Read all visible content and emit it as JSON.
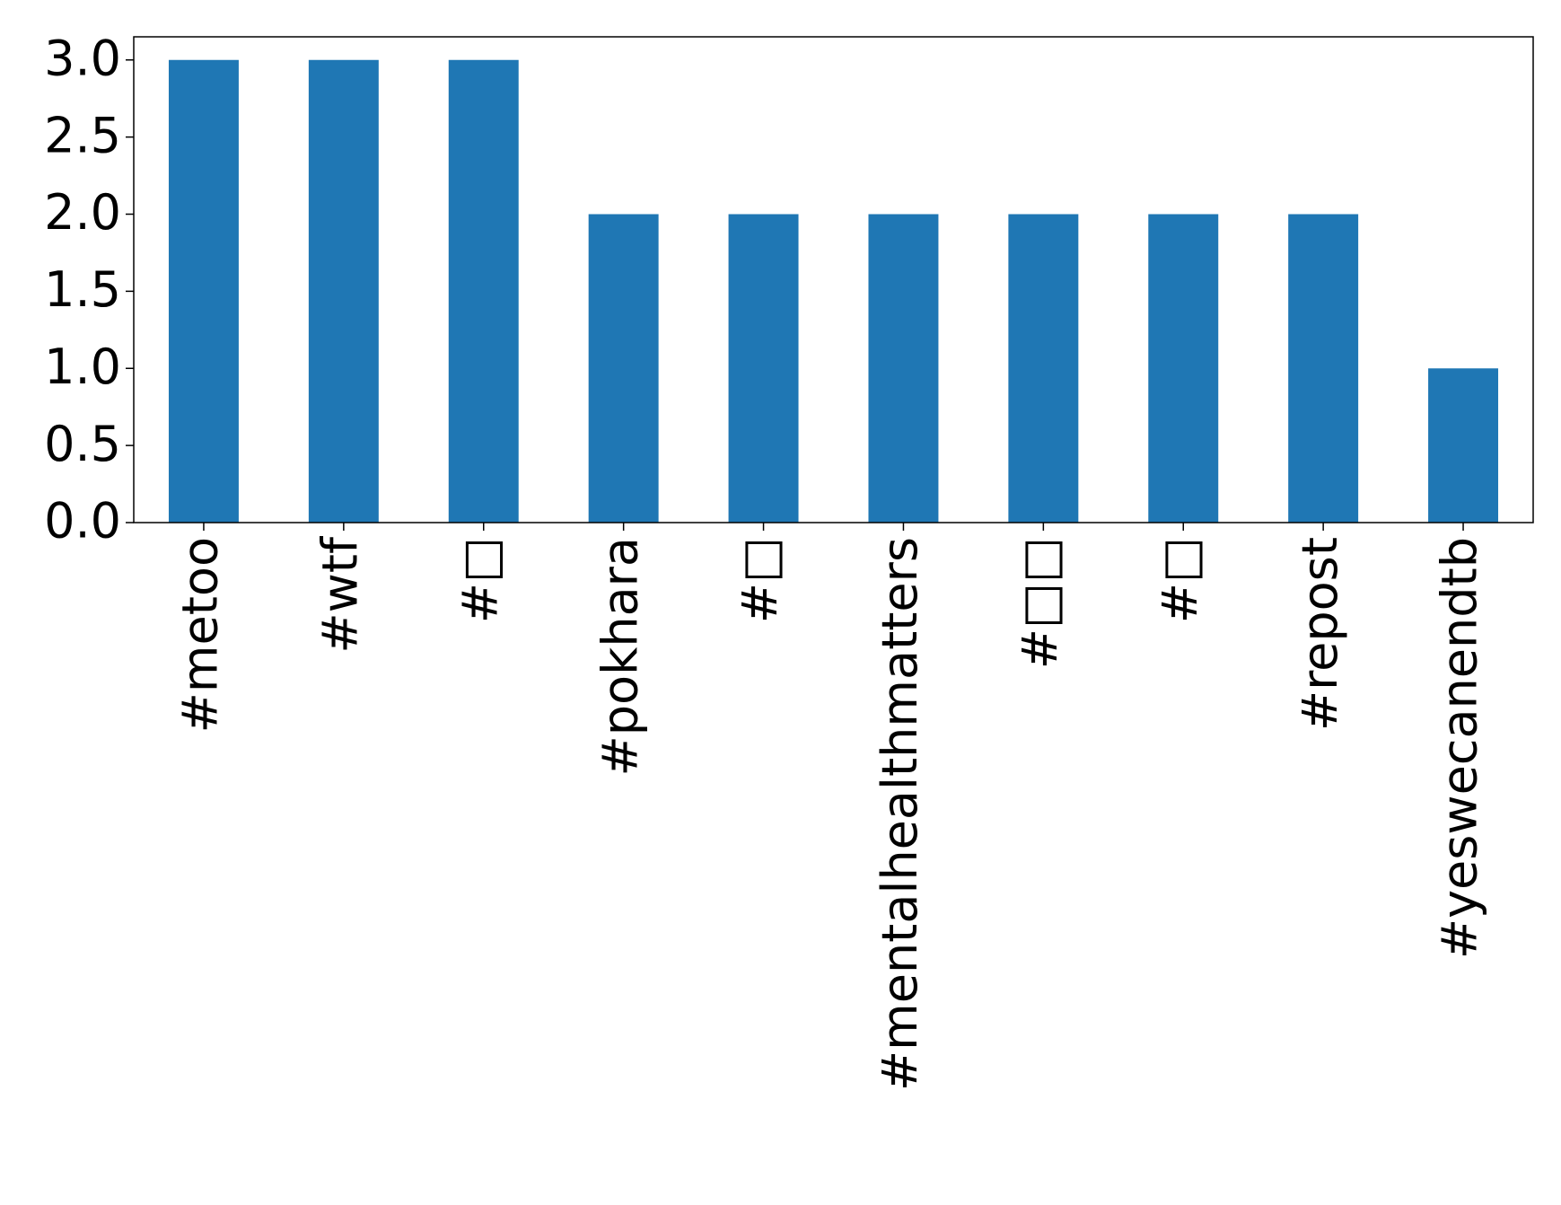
{
  "chart_data": {
    "type": "bar",
    "categories": [
      "#metoo",
      "#wtf",
      "#□",
      "#pokhara",
      "#□",
      "#mentalhealthmatters",
      "#□□",
      "#□",
      "#repost",
      "#yeswecanendtb"
    ],
    "values": [
      3,
      3,
      3,
      2,
      2,
      2,
      2,
      2,
      2,
      1
    ],
    "color": "#1f77b4",
    "ylim": [
      0,
      3.15
    ],
    "yticks": [
      {
        "value": 0,
        "label": "0.0"
      },
      {
        "value": 0.5,
        "label": "0.5"
      },
      {
        "value": 1,
        "label": "1.0"
      },
      {
        "value": 1.5,
        "label": "1.5"
      },
      {
        "value": 2,
        "label": "2.0"
      },
      {
        "value": 2.5,
        "label": "2.5"
      },
      {
        "value": 3,
        "label": "3.0"
      }
    ],
    "grid": false
  }
}
